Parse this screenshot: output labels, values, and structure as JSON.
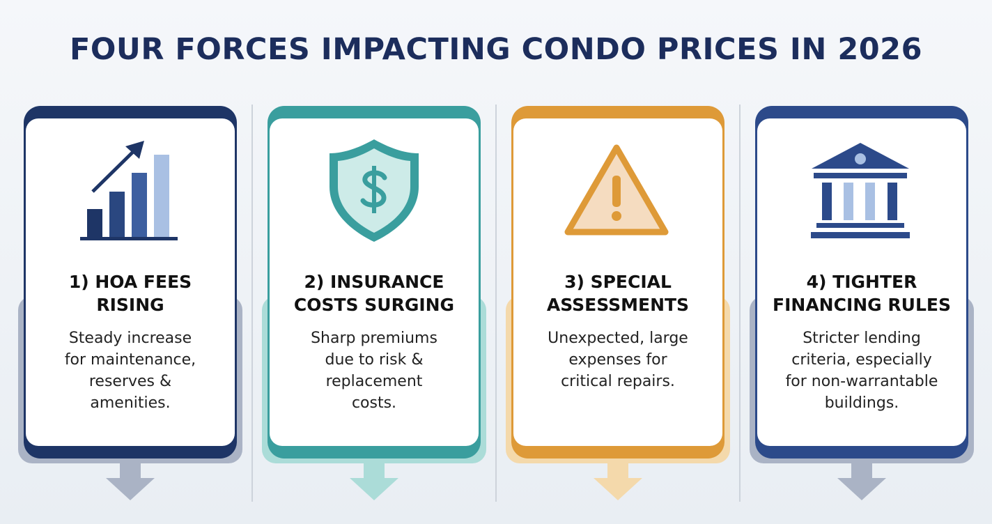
{
  "title": "FOUR FORCES IMPACTING CONDO PRICES IN 2026",
  "cards": [
    {
      "heading_lines": [
        "1) HOA FEES",
        "RISING"
      ],
      "text_lines": [
        "Steady increase",
        "for maintenance,",
        "reserves &",
        "amenities."
      ]
    },
    {
      "heading_lines": [
        "2) INSURANCE",
        "COSTS SURGING"
      ],
      "text_lines": [
        "Sharp premiums",
        "due to risk &",
        "replacement",
        "costs."
      ]
    },
    {
      "heading_lines": [
        "3) SPECIAL",
        "ASSESSMENTS"
      ],
      "text_lines": [
        "Unexpected, large",
        "expenses for",
        "critical repairs."
      ]
    },
    {
      "heading_lines": [
        "4) TIGHTER",
        "FINANCING RULES"
      ],
      "text_lines": [
        "Stricter lending",
        "criteria, especially",
        "for non-warrantable",
        "buildings."
      ]
    }
  ]
}
